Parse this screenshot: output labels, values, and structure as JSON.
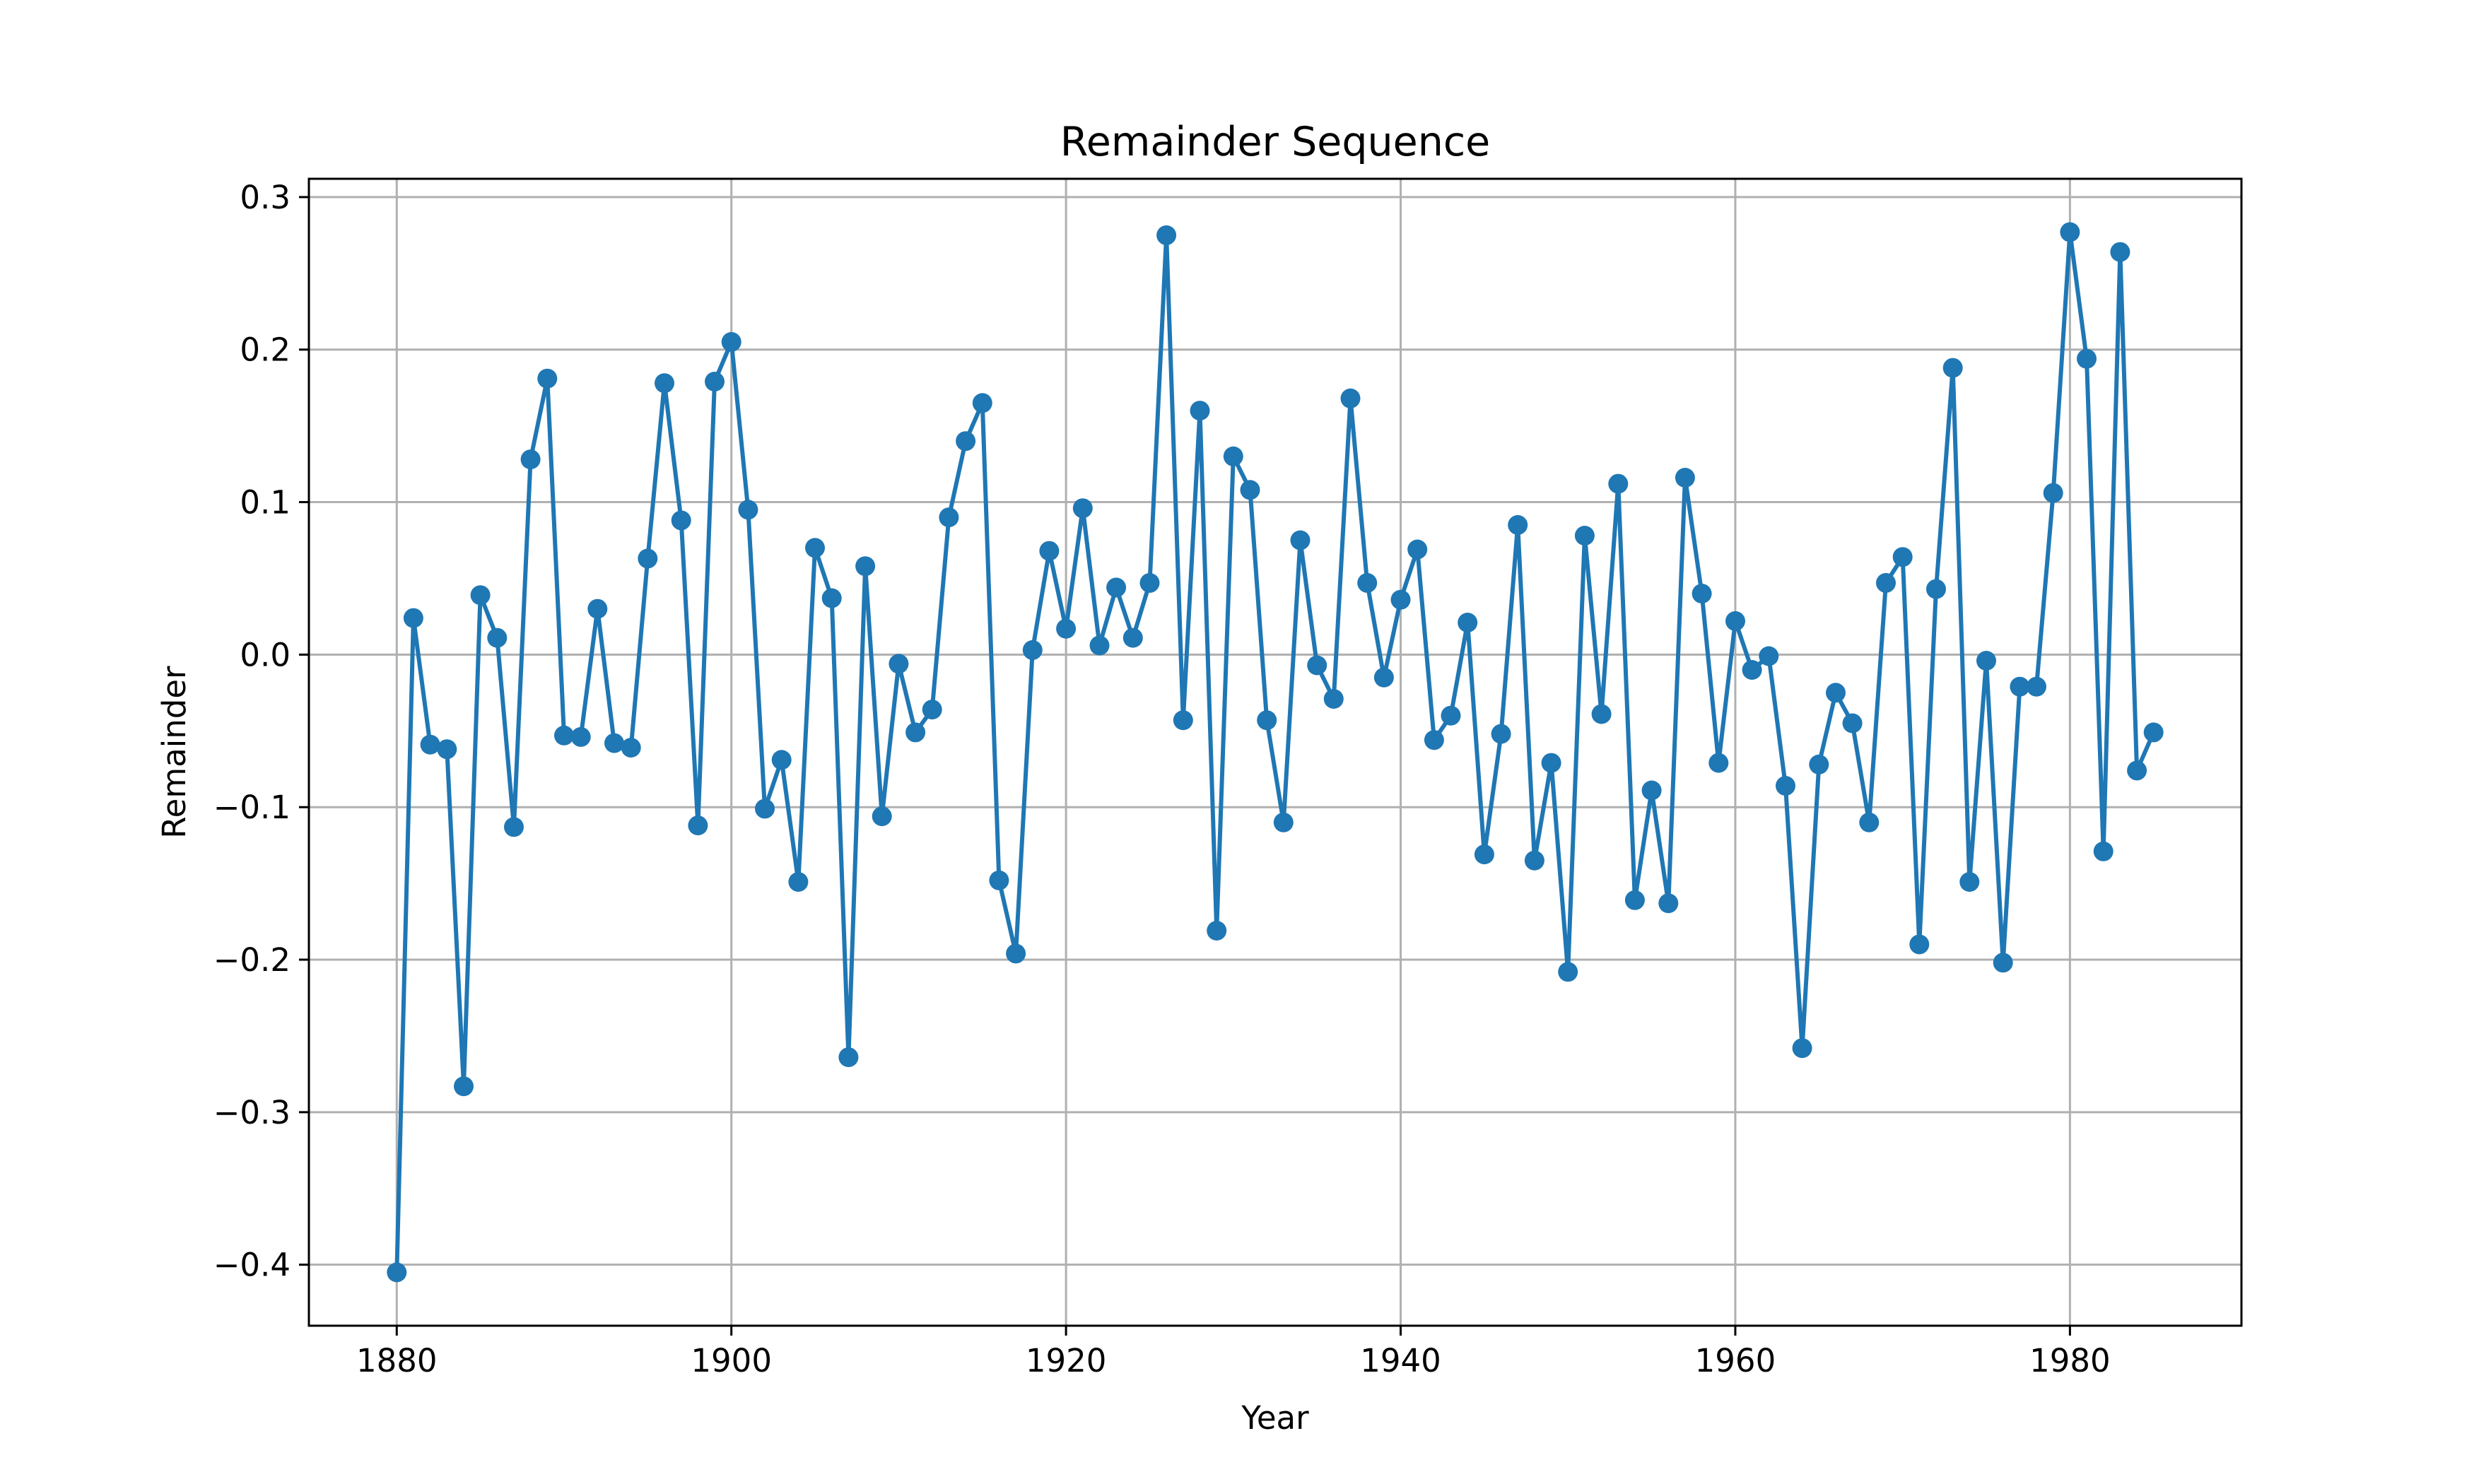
{
  "chart_data": {
    "type": "line",
    "title": "Remainder Sequence",
    "xlabel": "Year",
    "ylabel": "Remainder",
    "xlim": [
      1874.75,
      1890.25
    ],
    "ylim": [
      -0.44,
      0.312
    ],
    "grid": true,
    "marker": "circle",
    "color": "#1f77b4",
    "x_ticks": [
      1880,
      1900,
      1920,
      1940,
      1960,
      1980
    ],
    "x_tick_labels": [
      "1880",
      "1900",
      "1920",
      "1940",
      "1960",
      "1980"
    ],
    "y_ticks": [
      0.3,
      0.2,
      0.1,
      0.0,
      -0.1,
      -0.2,
      -0.3,
      -0.4
    ],
    "y_tick_labels": [
      "0.3",
      "0.2",
      "0.1",
      "0.0",
      "−0.1",
      "−0.2",
      "−0.3",
      "−0.4"
    ],
    "series": [
      {
        "x_start": 1880,
        "x_end": 1985,
        "values": [
          -0.405,
          0.024,
          -0.059,
          -0.062,
          -0.283,
          0.039,
          0.011,
          -0.113,
          0.128,
          0.181,
          -0.053,
          -0.054,
          0.03,
          -0.058,
          -0.061,
          0.063,
          0.178,
          0.088,
          -0.112,
          0.179,
          0.205,
          0.095,
          -0.101,
          -0.069,
          -0.149,
          0.07,
          0.037,
          -0.264,
          0.058,
          -0.106,
          -0.006,
          -0.051,
          -0.036,
          0.09,
          0.14,
          0.165,
          -0.148,
          -0.196,
          0.003,
          0.068,
          0.017,
          0.096,
          0.006,
          0.044,
          0.011,
          0.047,
          0.275,
          -0.043,
          0.16,
          -0.181,
          0.13,
          0.108,
          -0.043,
          -0.11,
          0.075,
          -0.007,
          -0.029,
          0.168,
          0.047,
          -0.015,
          0.036,
          0.069,
          -0.056,
          -0.04,
          0.021,
          -0.131,
          -0.052,
          0.085,
          -0.135,
          -0.071,
          -0.208,
          0.078,
          -0.039,
          0.112,
          -0.161,
          -0.089,
          -0.163,
          0.116,
          0.04,
          -0.071,
          0.022,
          -0.01,
          -0.001,
          -0.086,
          -0.258,
          -0.072,
          -0.025,
          -0.045,
          -0.11,
          0.047,
          0.064,
          -0.19,
          0.043,
          0.188,
          -0.149,
          -0.004,
          -0.202,
          -0.021,
          -0.021,
          0.106,
          0.277,
          0.194,
          -0.129,
          0.264,
          -0.076,
          -0.051
        ]
      }
    ]
  }
}
